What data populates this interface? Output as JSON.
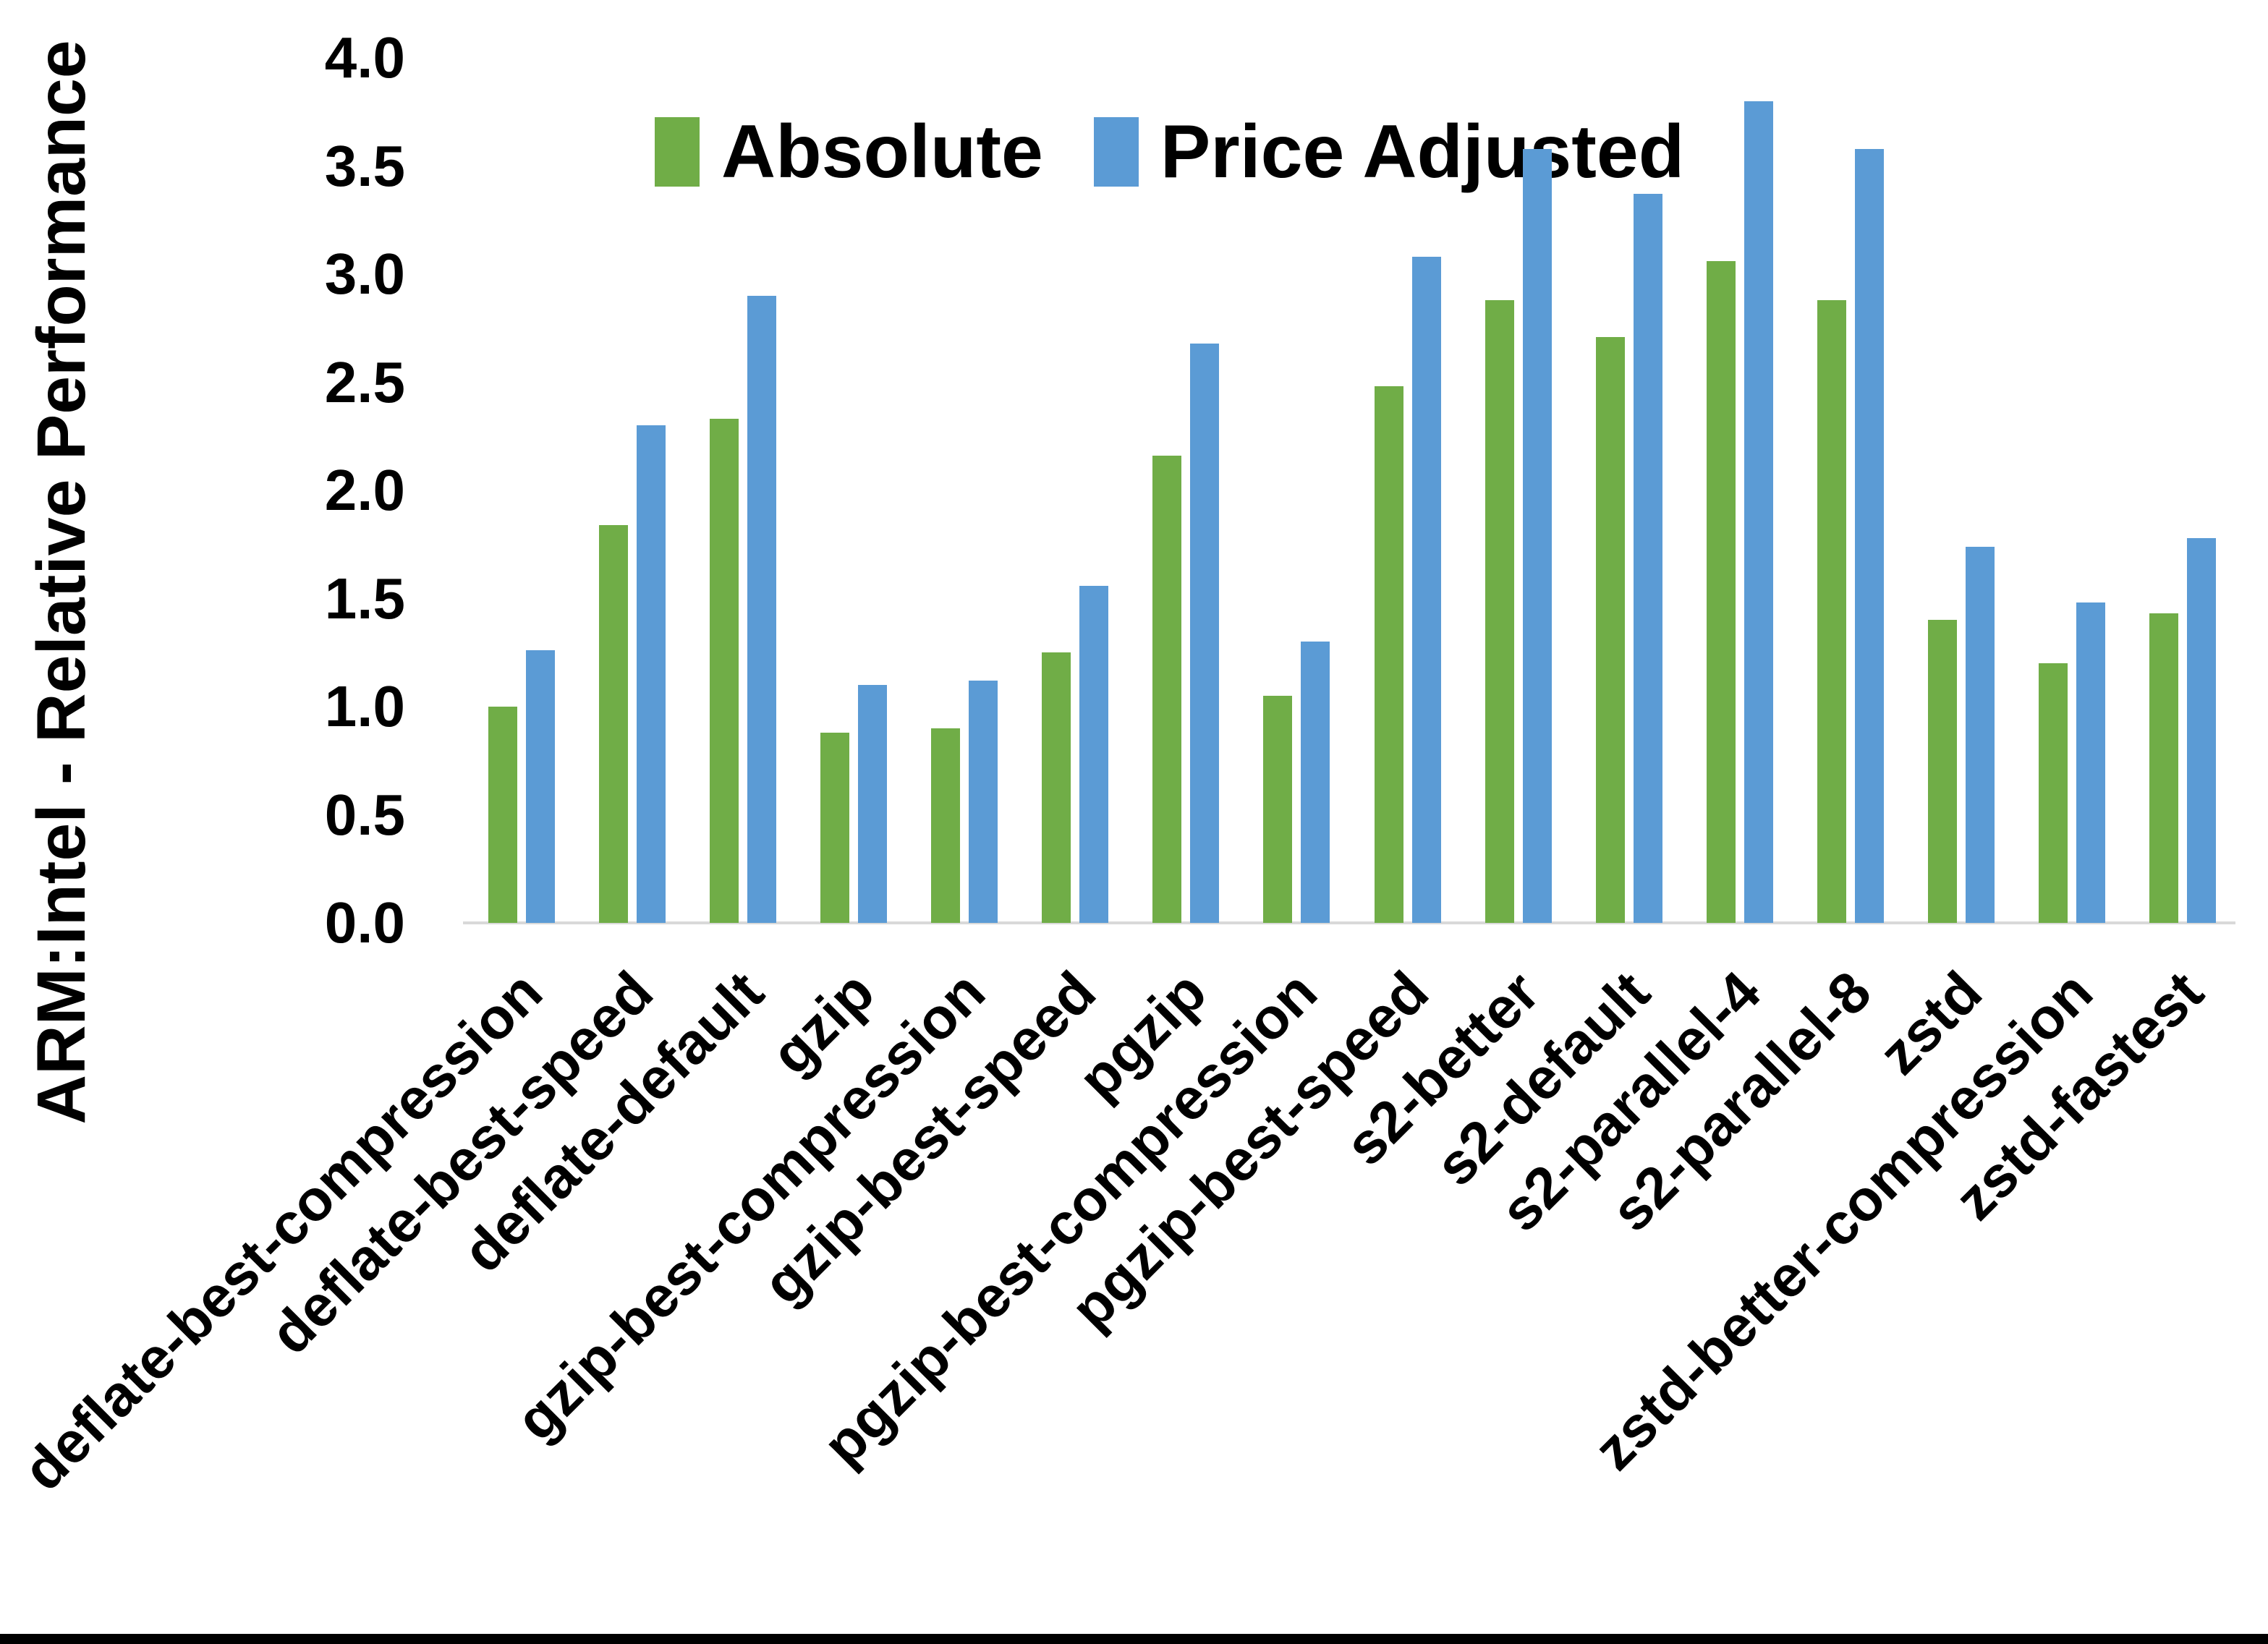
{
  "page": {
    "background": "#ffffff",
    "bottom_bar_color": "#000000"
  },
  "chart_data": {
    "type": "bar",
    "title": "",
    "xlabel": "",
    "ylabel": "ARM:Intel - Relative Performance",
    "ylim": [
      0.0,
      4.0
    ],
    "ytick_step": 0.5,
    "yticks": [
      "0.0",
      "0.5",
      "1.0",
      "1.5",
      "2.0",
      "2.5",
      "3.0",
      "3.5",
      "4.0"
    ],
    "grid": false,
    "legend_position": "top-center",
    "axis_line_color": "#d9d9d9",
    "categories": [
      "deflate-best-compression",
      "deflate-best-speed",
      "deflate-default",
      "gzip",
      "gzip-best-compression",
      "gzip-best-speed",
      "pgzip",
      "pgzip-best-compression",
      "pgzip-best-speed",
      "s2-better",
      "s2-default",
      "s2-parallel-4",
      "s2-parallel-8",
      "zstd",
      "zstd-better-compression",
      "zstd-fastest"
    ],
    "series": [
      {
        "name": "Absolute",
        "color": "#70AD47",
        "values": [
          1.0,
          1.84,
          2.33,
          0.88,
          0.9,
          1.25,
          2.16,
          1.05,
          2.48,
          2.88,
          2.71,
          3.06,
          2.88,
          1.4,
          1.2,
          1.43
        ]
      },
      {
        "name": "Price Adjusted",
        "color": "#5B9BD5",
        "values": [
          1.26,
          2.3,
          2.9,
          1.1,
          1.12,
          1.56,
          2.68,
          1.3,
          3.08,
          3.58,
          3.37,
          3.8,
          3.58,
          1.74,
          1.48,
          1.78
        ]
      }
    ]
  }
}
